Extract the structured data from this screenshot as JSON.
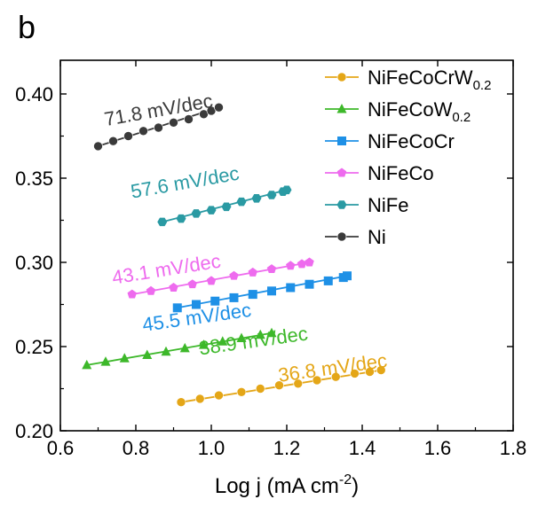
{
  "panel_label": "b",
  "chart_data": {
    "type": "scatter",
    "xlabel": "Log j (mA cm",
    "xlabel_sup": "-2",
    "xlabel_end": ")",
    "ylabel": "",
    "xlim": [
      0.6,
      1.8
    ],
    "ylim": [
      0.2,
      0.42
    ],
    "xticks": [
      "0.6",
      "0.8",
      "1.0",
      "1.2",
      "1.4",
      "1.6",
      "1.8"
    ],
    "yticks": [
      "0.20",
      "0.25",
      "0.30",
      "0.35",
      "0.40"
    ],
    "xtick_values": [
      0.6,
      0.8,
      1.0,
      1.2,
      1.4,
      1.6,
      1.8
    ],
    "ytick_values": [
      0.2,
      0.25,
      0.3,
      0.35,
      0.4
    ],
    "legend_position": "top-right",
    "series": [
      {
        "name": "NiFeCoCrW",
        "sub": "0.2",
        "color": "#E4A617",
        "marker": "circle",
        "slope_label": "36.8 mV/dec",
        "x": [
          0.92,
          0.97,
          1.02,
          1.08,
          1.13,
          1.18,
          1.23,
          1.28,
          1.33,
          1.38,
          1.42,
          1.45
        ],
        "y": [
          0.217,
          0.219,
          0.221,
          0.223,
          0.225,
          0.227,
          0.228,
          0.23,
          0.232,
          0.234,
          0.235,
          0.236
        ]
      },
      {
        "name": "NiFeCoW",
        "sub": "0.2",
        "color": "#3DB82A",
        "marker": "triangle",
        "slope_label": "38.9 mV/dec",
        "x": [
          0.67,
          0.72,
          0.77,
          0.83,
          0.88,
          0.93,
          0.98,
          1.03,
          1.08,
          1.13,
          1.16
        ],
        "y": [
          0.239,
          0.241,
          0.243,
          0.245,
          0.247,
          0.249,
          0.251,
          0.253,
          0.255,
          0.257,
          0.258
        ]
      },
      {
        "name": "NiFeCoCr",
        "sub": "",
        "color": "#1E90E6",
        "marker": "square",
        "slope_label": "45.5 mV/dec",
        "x": [
          0.91,
          0.96,
          1.01,
          1.06,
          1.11,
          1.16,
          1.21,
          1.26,
          1.31,
          1.35,
          1.36
        ],
        "y": [
          0.273,
          0.275,
          0.277,
          0.279,
          0.281,
          0.283,
          0.285,
          0.287,
          0.289,
          0.291,
          0.292
        ]
      },
      {
        "name": "NiFeCo",
        "sub": "",
        "color": "#EE6BEE",
        "marker": "pentagon",
        "slope_label": "43.1 mV/dec",
        "x": [
          0.79,
          0.84,
          0.9,
          0.95,
          1.0,
          1.06,
          1.11,
          1.16,
          1.21,
          1.24,
          1.26
        ],
        "y": [
          0.281,
          0.283,
          0.285,
          0.287,
          0.289,
          0.292,
          0.294,
          0.296,
          0.298,
          0.299,
          0.3
        ]
      },
      {
        "name": "NiFe",
        "sub": "",
        "color": "#2A9AA3",
        "marker": "hexagon",
        "slope_label": "57.6 mV/dec",
        "x": [
          0.87,
          0.92,
          0.96,
          1.0,
          1.04,
          1.08,
          1.12,
          1.16,
          1.19,
          1.2
        ],
        "y": [
          0.324,
          0.326,
          0.329,
          0.331,
          0.333,
          0.336,
          0.338,
          0.34,
          0.342,
          0.343
        ]
      },
      {
        "name": "Ni",
        "sub": "",
        "color": "#3A3A3A",
        "marker": "circle",
        "slope_label": "71.8 mV/dec",
        "x": [
          0.7,
          0.74,
          0.78,
          0.82,
          0.86,
          0.9,
          0.94,
          0.98,
          1.0,
          1.02
        ],
        "y": [
          0.369,
          0.372,
          0.375,
          0.378,
          0.38,
          0.383,
          0.385,
          0.388,
          0.39,
          0.392
        ]
      }
    ]
  }
}
